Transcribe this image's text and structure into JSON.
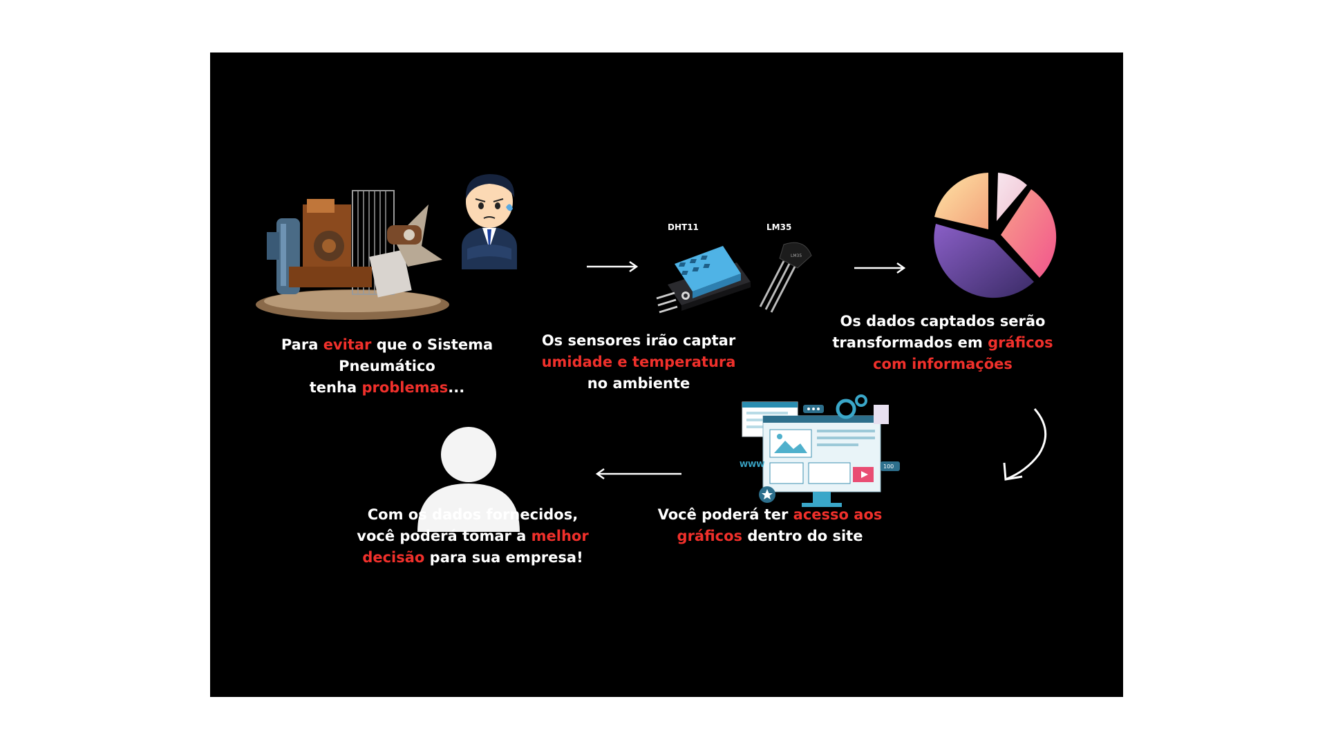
{
  "colors": {
    "background": "#000000",
    "text": "#ffffff",
    "highlight": "#f0302b"
  },
  "steps": {
    "problem": {
      "t1": "Para ",
      "h1": "evitar",
      "t2": " que o Sistema Pneumático",
      "t3": "tenha ",
      "h2": "problemas",
      "t4": "..."
    },
    "sensors": {
      "label_dht": "DHT11",
      "label_lm": "LM35",
      "t1": "Os sensores irão captar",
      "h1": "umidade e temperatura",
      "t2": "no ambiente"
    },
    "charts": {
      "t1": "Os dados captados serão",
      "t2": "transformados em ",
      "h1": "gráficos",
      "h2": "com informações"
    },
    "site": {
      "t1": "Você poderá ter ",
      "h1": "acesso aos",
      "h2": "gráficos",
      "t2": " dentro do site",
      "web_label": "WWW",
      "badge": "100"
    },
    "decision": {
      "t1": "Com os dados fornecidos,",
      "t2": "você poderá tomar a ",
      "h1": "melhor",
      "h2": "decisão",
      "t3": " para sua empresa!"
    }
  },
  "icons": [
    "compressor-image",
    "worried-man-icon",
    "dht11-sensor-icon",
    "lm35-sensor-icon",
    "pie-chart-icon",
    "website-dashboard-icon",
    "user-icon",
    "arrow-right-icon",
    "arrow-curved-icon",
    "arrow-left-icon"
  ]
}
